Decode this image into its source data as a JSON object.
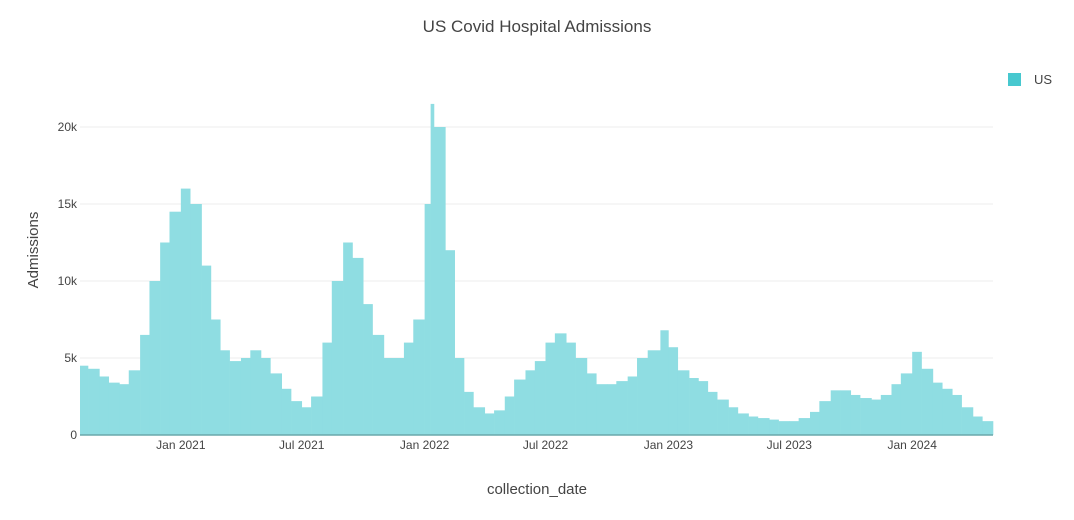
{
  "chart_data": {
    "type": "bar",
    "title": "US Covid Hospital Admissions",
    "xlabel": "collection_date",
    "ylabel": "Admissions",
    "ylim": [
      0,
      23000
    ],
    "xlim": [
      "2020-08-03",
      "2024-05-01"
    ],
    "grid": true,
    "legend_position": "top-right",
    "colors": {
      "series": "#47c8cf",
      "bar_fill": "#8fdde2",
      "axis": "#6aa8ab",
      "grid": "#eeeeee"
    },
    "x_ticks": [
      {
        "date": "2021-01-01",
        "label": "Jan 2021"
      },
      {
        "date": "2021-07-01",
        "label": "Jul 2021"
      },
      {
        "date": "2022-01-01",
        "label": "Jan 2022"
      },
      {
        "date": "2022-07-01",
        "label": "Jul 2022"
      },
      {
        "date": "2023-01-01",
        "label": "Jan 2023"
      },
      {
        "date": "2023-07-01",
        "label": "Jul 2023"
      },
      {
        "date": "2024-01-01",
        "label": "Jan 2024"
      }
    ],
    "y_ticks": [
      {
        "value": 0,
        "label": "0"
      },
      {
        "value": 5000,
        "label": "5k"
      },
      {
        "value": 10000,
        "label": "10k"
      },
      {
        "value": 15000,
        "label": "15k"
      },
      {
        "value": 20000,
        "label": "20k"
      }
    ],
    "series": [
      {
        "name": "US",
        "x": [
          "2020-08-03",
          "2020-08-15",
          "2020-09-01",
          "2020-09-15",
          "2020-10-01",
          "2020-10-15",
          "2020-11-01",
          "2020-11-15",
          "2020-12-01",
          "2020-12-15",
          "2021-01-01",
          "2021-01-15",
          "2021-02-01",
          "2021-02-15",
          "2021-03-01",
          "2021-03-15",
          "2021-04-01",
          "2021-04-15",
          "2021-05-01",
          "2021-05-15",
          "2021-06-01",
          "2021-06-15",
          "2021-07-01",
          "2021-07-15",
          "2021-08-01",
          "2021-08-15",
          "2021-09-01",
          "2021-09-15",
          "2021-10-01",
          "2021-10-15",
          "2021-11-01",
          "2021-11-15",
          "2021-12-01",
          "2021-12-15",
          "2022-01-01",
          "2022-01-10",
          "2022-01-15",
          "2022-02-01",
          "2022-02-15",
          "2022-03-01",
          "2022-03-15",
          "2022-04-01",
          "2022-04-15",
          "2022-05-01",
          "2022-05-15",
          "2022-06-01",
          "2022-06-15",
          "2022-07-01",
          "2022-07-15",
          "2022-08-01",
          "2022-08-15",
          "2022-09-01",
          "2022-09-15",
          "2022-10-01",
          "2022-10-15",
          "2022-11-01",
          "2022-11-15",
          "2022-12-01",
          "2022-12-20",
          "2023-01-01",
          "2023-01-15",
          "2023-02-01",
          "2023-02-15",
          "2023-03-01",
          "2023-03-15",
          "2023-04-01",
          "2023-04-15",
          "2023-05-01",
          "2023-05-15",
          "2023-06-01",
          "2023-06-15",
          "2023-07-01",
          "2023-07-15",
          "2023-08-01",
          "2023-08-15",
          "2023-09-01",
          "2023-09-15",
          "2023-10-01",
          "2023-10-15",
          "2023-11-01",
          "2023-11-15",
          "2023-12-01",
          "2023-12-15",
          "2024-01-01",
          "2024-01-15",
          "2024-02-01",
          "2024-02-15",
          "2024-03-01",
          "2024-03-15",
          "2024-04-01",
          "2024-04-15"
        ],
        "y": [
          4500,
          4300,
          3800,
          3400,
          3300,
          4200,
          6500,
          10000,
          12500,
          14500,
          16000,
          15000,
          11000,
          7500,
          5500,
          4800,
          5000,
          5500,
          5000,
          4000,
          3000,
          2200,
          1800,
          2500,
          6000,
          10000,
          12500,
          11500,
          8500,
          6500,
          5000,
          5000,
          6000,
          7500,
          15000,
          21500,
          20000,
          12000,
          5000,
          2800,
          1800,
          1400,
          1600,
          2500,
          3600,
          4200,
          4800,
          6000,
          6600,
          6000,
          5000,
          4000,
          3300,
          3300,
          3500,
          3800,
          5000,
          5500,
          6800,
          5700,
          4200,
          3700,
          3500,
          2800,
          2300,
          1800,
          1400,
          1200,
          1100,
          1000,
          900,
          900,
          1100,
          1500,
          2200,
          2900,
          2900,
          2600,
          2400,
          2300,
          2600,
          3300,
          4000,
          5400,
          4300,
          3400,
          3000,
          2600,
          1800,
          1200,
          900
        ]
      }
    ]
  }
}
